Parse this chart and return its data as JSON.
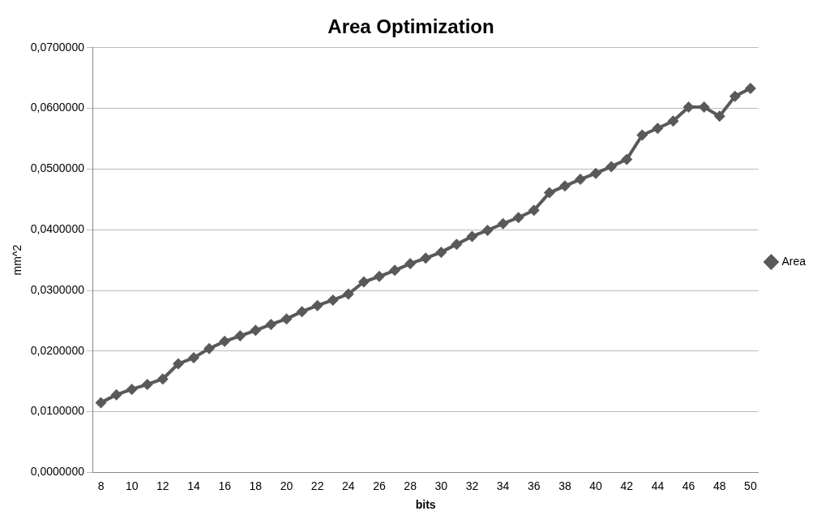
{
  "chart_data": {
    "type": "line",
    "title": "Area Optimization",
    "xlabel": "bits",
    "ylabel": "mm^2",
    "categories": [
      "8",
      null,
      "10",
      null,
      "12",
      null,
      "14",
      null,
      "16",
      null,
      "18",
      null,
      "20",
      null,
      "22",
      null,
      "24",
      null,
      "26",
      null,
      "28",
      null,
      "30",
      null,
      "32",
      null,
      "34",
      null,
      "36",
      null,
      "38",
      null,
      "40",
      null,
      "42",
      null,
      "44",
      null,
      "46",
      null,
      "48",
      null,
      "50"
    ],
    "series": [
      {
        "name": "Area",
        "color": "#595959",
        "values": [
          0.0115,
          0.0128,
          0.0137,
          0.0145,
          0.0154,
          0.0179,
          0.0189,
          0.0204,
          0.0216,
          0.0225,
          0.0234,
          0.0244,
          0.0253,
          0.0265,
          0.0275,
          0.0284,
          0.0294,
          0.0314,
          0.0323,
          0.0333,
          0.0344,
          0.0353,
          0.0363,
          0.0376,
          0.0389,
          0.0399,
          0.041,
          0.042,
          0.0432,
          0.0461,
          0.0472,
          0.0483,
          0.0493,
          0.0504,
          0.0516,
          0.0556,
          0.0567,
          0.0579,
          0.0602,
          0.0602,
          0.0587,
          0.062,
          0.0633
        ]
      }
    ],
    "ylim": [
      0,
      0.07
    ],
    "yticks": [
      {
        "value": 0,
        "label": "0,0000000"
      },
      {
        "value": 0.01,
        "label": "0,0100000"
      },
      {
        "value": 0.02,
        "label": "0,0200000"
      },
      {
        "value": 0.03,
        "label": "0,0300000"
      },
      {
        "value": 0.04,
        "label": "0,0400000"
      },
      {
        "value": 0.05,
        "label": "0,0500000"
      },
      {
        "value": 0.06,
        "label": "0,0600000"
      },
      {
        "value": 0.07,
        "label": "0,0700000"
      }
    ],
    "grid": "y",
    "legend": "right",
    "marker": "diamond",
    "line_style": "solid"
  }
}
